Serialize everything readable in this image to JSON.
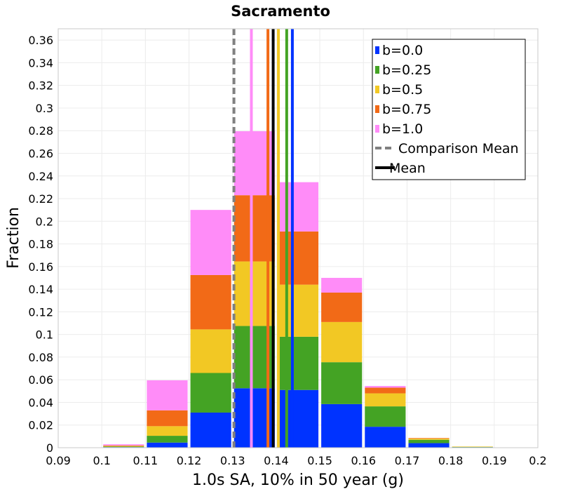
{
  "chart_data": {
    "type": "bar",
    "stacked": true,
    "title": "Sacramento",
    "xlabel": "1.0s SA, 10% in 50 year (g)",
    "ylabel": "Fraction",
    "xlim": [
      0.09,
      0.2
    ],
    "ylim": [
      0,
      0.37
    ],
    "x_ticks": [
      "0.09",
      "0.1",
      "0.11",
      "0.12",
      "0.13",
      "0.14",
      "0.15",
      "0.16",
      "0.17",
      "0.18",
      "0.19",
      "0.2"
    ],
    "y_ticks": [
      "0",
      "0.02",
      "0.04",
      "0.06",
      "0.08",
      "0.1",
      "0.12",
      "0.14",
      "0.16",
      "0.18",
      "0.2",
      "0.22",
      "0.24",
      "0.26",
      "0.28",
      "0.3",
      "0.32",
      "0.34",
      "0.36"
    ],
    "grid": true,
    "legend_position": "top-right",
    "bin_width": 0.01,
    "bins": [
      0.1,
      0.11,
      0.12,
      0.13,
      0.14,
      0.15,
      0.16,
      0.17,
      0.18,
      0.19
    ],
    "series": [
      {
        "name": "b=0.0",
        "color": "#0033ff",
        "values": [
          0.0005,
          0.0045,
          0.031,
          0.0525,
          0.051,
          0.0385,
          0.0185,
          0.004,
          0.0005,
          0.0
        ]
      },
      {
        "name": "b=0.25",
        "color": "#44a324",
        "values": [
          0.0005,
          0.006,
          0.035,
          0.055,
          0.047,
          0.037,
          0.018,
          0.003,
          0.0003,
          0.0
        ]
      },
      {
        "name": "b=0.5",
        "color": "#f2c824",
        "values": [
          0.0005,
          0.0085,
          0.0385,
          0.057,
          0.046,
          0.0355,
          0.0115,
          0.001,
          0.0002,
          0.0
        ]
      },
      {
        "name": "b=0.75",
        "color": "#f26a17",
        "values": [
          0.0005,
          0.014,
          0.048,
          0.0585,
          0.047,
          0.026,
          0.005,
          0.0005,
          0.0,
          0.0
        ]
      },
      {
        "name": "b=1.0",
        "color": "#ff8cf8",
        "values": [
          0.001,
          0.0265,
          0.0575,
          0.0565,
          0.0435,
          0.013,
          0.0015,
          0.0,
          0.0,
          0.0
        ]
      }
    ],
    "vertical_lines": [
      {
        "name": "Comparison Mean",
        "x": 0.1303,
        "color": "#808080",
        "style": "dashed"
      },
      {
        "name": "Mean",
        "x": 0.1393,
        "color": "#000000",
        "style": "solid"
      },
      {
        "name": "b=0.0 mean",
        "x": 0.1437,
        "color": "#0033ff",
        "style": "solid"
      },
      {
        "name": "b=0.25 mean",
        "x": 0.1424,
        "color": "#44a324",
        "style": "solid"
      },
      {
        "name": "b=0.5 mean",
        "x": 0.1405,
        "color": "#f2c824",
        "style": "solid"
      },
      {
        "name": "b=0.75 mean",
        "x": 0.1381,
        "color": "#f26a17",
        "style": "solid"
      },
      {
        "name": "b=1.0 mean",
        "x": 0.1343,
        "color": "#ff8cf8",
        "style": "solid"
      }
    ],
    "legend": [
      {
        "label": "b=0.0",
        "color": "#0033ff",
        "kind": "box"
      },
      {
        "label": "b=0.25",
        "color": "#44a324",
        "kind": "box"
      },
      {
        "label": "b=0.5",
        "color": "#f2c824",
        "kind": "box"
      },
      {
        "label": "b=0.75",
        "color": "#f26a17",
        "kind": "box"
      },
      {
        "label": "b=1.0",
        "color": "#ff8cf8",
        "kind": "box"
      },
      {
        "label": "Comparison Mean",
        "color": "#808080",
        "kind": "dashed"
      },
      {
        "label": "Mean",
        "color": "#000000",
        "kind": "solid"
      }
    ]
  }
}
